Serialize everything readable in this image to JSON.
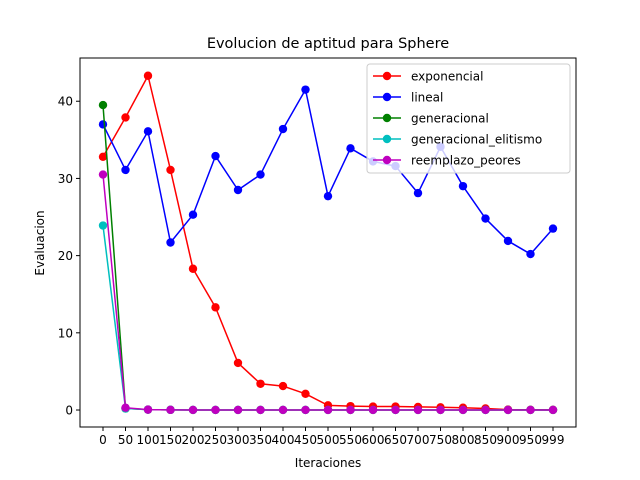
{
  "chart_data": {
    "type": "line",
    "title": "Evolucion de aptitud para Sphere",
    "xlabel": "Iteraciones",
    "ylabel": "Evaluacion",
    "x": [
      0,
      50,
      100,
      150,
      200,
      250,
      300,
      350,
      400,
      450,
      500,
      550,
      600,
      650,
      700,
      750,
      800,
      850,
      900,
      950,
      999
    ],
    "xtick_labels": [
      "0",
      "50",
      "100",
      "150",
      "200",
      "250",
      "300",
      "350",
      "400",
      "450",
      "500",
      "550",
      "600",
      "650",
      "700",
      "750",
      "800",
      "850",
      "900",
      "950",
      "999"
    ],
    "yticks": [
      0,
      10,
      20,
      30,
      40
    ],
    "ylim": [
      -2.2,
      45.6
    ],
    "grid": false,
    "legend_position": "top-right",
    "marker": "circle",
    "series": [
      {
        "name": "exponencial",
        "color": "#ff0000",
        "values": [
          32.8,
          37.9,
          43.3,
          31.1,
          18.3,
          13.3,
          6.1,
          3.4,
          3.1,
          2.1,
          0.6,
          0.5,
          0.45,
          0.45,
          0.4,
          0.35,
          0.3,
          0.2,
          0.05,
          0.03,
          0.02
        ]
      },
      {
        "name": "lineal",
        "color": "#0000ff",
        "values": [
          37.0,
          31.1,
          36.1,
          21.7,
          25.3,
          32.9,
          28.5,
          30.5,
          36.4,
          41.5,
          27.7,
          33.9,
          32.2,
          31.6,
          28.1,
          34.1,
          29.0,
          24.8,
          21.9,
          20.2,
          23.5
        ]
      },
      {
        "name": "generacional",
        "color": "#008000",
        "values": [
          39.5,
          0.2,
          0.05,
          0.02,
          0.01,
          0.01,
          0.01,
          0.01,
          0.01,
          0.01,
          0.01,
          0.01,
          0.01,
          0.01,
          0.01,
          0.01,
          0.01,
          0.01,
          0.01,
          0.01,
          0.01
        ]
      },
      {
        "name": "generacional_elitismo",
        "color": "#00bfbf",
        "values": [
          23.9,
          0.2,
          0.05,
          0.02,
          0.01,
          0.01,
          0.01,
          0.01,
          0.01,
          0.01,
          0.01,
          0.01,
          0.01,
          0.01,
          0.01,
          0.01,
          0.01,
          0.01,
          0.01,
          0.01,
          0.01
        ]
      },
      {
        "name": "reemplazo_peores",
        "color": "#bf00bf",
        "values": [
          30.5,
          0.3,
          0.05,
          0.02,
          0.01,
          0.01,
          0.01,
          0.01,
          0.01,
          0.01,
          0.01,
          0.01,
          0.01,
          0.01,
          0.01,
          0.01,
          0.01,
          0.01,
          0.01,
          0.01,
          0.01
        ]
      }
    ]
  }
}
